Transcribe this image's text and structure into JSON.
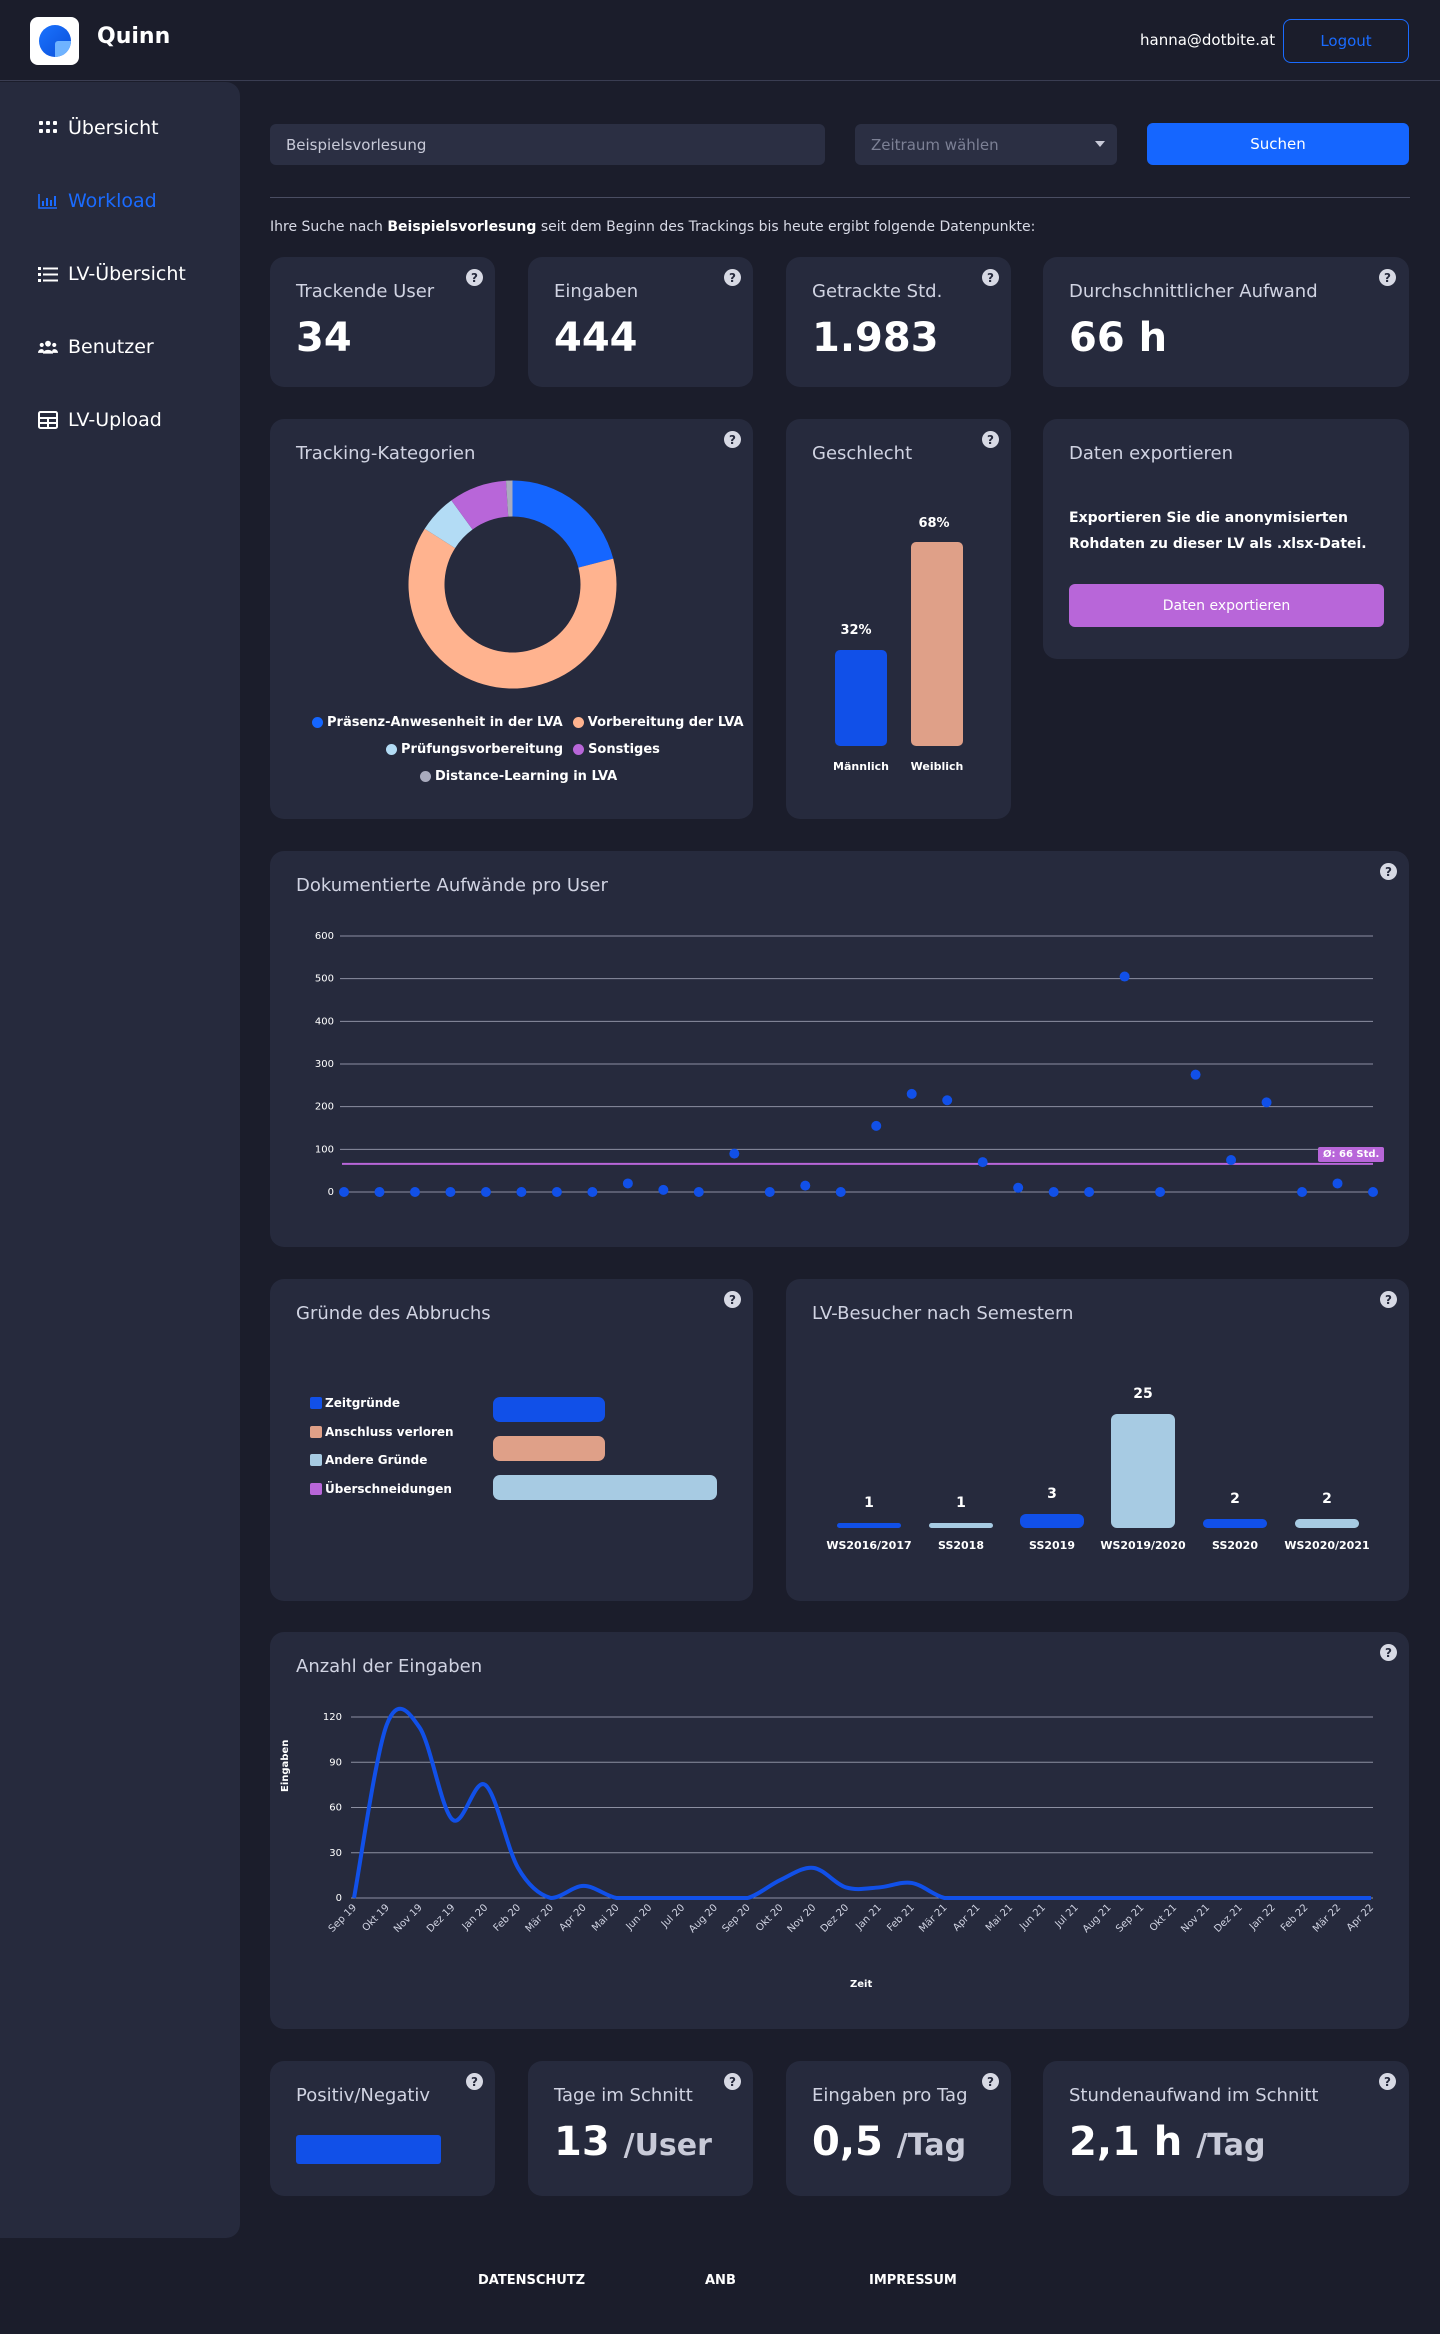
{
  "header": {
    "app_name": "Quinn",
    "user_email": "hanna@dotbite.at",
    "logout_label": "Logout"
  },
  "sidebar": {
    "items": [
      {
        "label": "Übersicht",
        "icon": "grid-icon",
        "active": false
      },
      {
        "label": "Workload",
        "icon": "bar-chart-icon",
        "active": true
      },
      {
        "label": "LV-Übersicht",
        "icon": "list-icon",
        "active": false
      },
      {
        "label": "Benutzer",
        "icon": "users-icon",
        "active": false
      },
      {
        "label": "LV-Upload",
        "icon": "table-icon",
        "active": false
      }
    ]
  },
  "search": {
    "value": "Beispielsvorlesung",
    "period_placeholder": "Zeitraum wählen",
    "button_label": "Suchen",
    "result_prefix": "Ihre Suche nach ",
    "result_term": "Beispielsvorlesung",
    "result_suffix": " seit dem Beginn des Trackings bis heute ergibt folgende Datenpunkte:"
  },
  "stats": [
    {
      "label": "Trackende User",
      "value": "34"
    },
    {
      "label": "Eingaben",
      "value": "444"
    },
    {
      "label": "Getrackte Std.",
      "value": "1.983"
    },
    {
      "label": "Durchschnittlicher Aufwand",
      "value": "66 h"
    }
  ],
  "tracking_categories": {
    "title": "Tracking-Kategorien",
    "legend": [
      {
        "label": "Präsenz-Anwesenheit in der LVA",
        "color": "#1566ff"
      },
      {
        "label": "Vorbereitung der LVA",
        "color": "#ffb38f"
      },
      {
        "label": "Prüfungsvorbereitung",
        "color": "#b3dcf5"
      },
      {
        "label": "Sonstiges",
        "color": "#b866d9"
      },
      {
        "label": "Distance-Learning in LVA",
        "color": "#a9abbe"
      }
    ]
  },
  "gender": {
    "title": "Geschlecht",
    "bars": [
      {
        "label": "Männlich",
        "value_text": "32%",
        "value": 32,
        "color": "#1150e8"
      },
      {
        "label": "Weiblich",
        "value_text": "68%",
        "value": 68,
        "color": "#dfa088"
      }
    ]
  },
  "export": {
    "title": "Daten exportieren",
    "text": "Exportieren Sie die anonymisierten Rohdaten zu dieser LV als .xlsx-Datei.",
    "button_label": "Daten exportieren"
  },
  "effort_chart": {
    "title": "Dokumentierte Aufwände pro User",
    "avg_label": "Ø: 66 Std."
  },
  "dropout": {
    "title": "Gründe des Abbruchs",
    "legend": [
      {
        "label": "Zeitgründe",
        "color": "#1150e8"
      },
      {
        "label": "Anschluss verloren",
        "color": "#dfa088"
      },
      {
        "label": "Andere Gründe",
        "color": "#a7cbe3"
      },
      {
        "label": "Überschneidungen",
        "color": "#b866d9"
      }
    ]
  },
  "semesters": {
    "title": "LV-Besucher nach Semestern"
  },
  "entries_chart": {
    "title": "Anzahl der Eingaben",
    "ylabel": "Eingaben",
    "xlabel": "Zeit"
  },
  "bottom_stats": {
    "posneg_label": "Positiv/Negativ",
    "days_label": "Tage im Schnitt",
    "days_value": "13",
    "days_unit": "/User",
    "perday_label": "Eingaben pro Tag",
    "perday_value": "0,5",
    "perday_unit": "/Tag",
    "hours_label": "Stundenaufwand im Schnitt",
    "hours_value": "2,1 h",
    "hours_unit": "/Tag"
  },
  "footer": {
    "links": [
      "DATENSCHUTZ",
      "ANB",
      "IMPRESSUM"
    ]
  },
  "chart_data": [
    {
      "type": "pie",
      "title": "Tracking-Kategorien",
      "categories": [
        "Präsenz-Anwesenheit in der LVA",
        "Vorbereitung der LVA",
        "Prüfungsvorbereitung",
        "Sonstiges",
        "Distance-Learning in LVA"
      ],
      "values": [
        21,
        63,
        6,
        9,
        1
      ],
      "colors": [
        "#1566ff",
        "#ffb38f",
        "#b3dcf5",
        "#b866d9",
        "#a9abbe"
      ]
    },
    {
      "type": "bar",
      "title": "Geschlecht",
      "categories": [
        "Männlich",
        "Weiblich"
      ],
      "values": [
        32,
        68
      ]
    },
    {
      "type": "scatter",
      "title": "Dokumentierte Aufwände pro User",
      "y": [
        0,
        0,
        0,
        0,
        0,
        0,
        0,
        0,
        20,
        5,
        0,
        90,
        0,
        15,
        0,
        155,
        230,
        215,
        70,
        10,
        0,
        0,
        505,
        0,
        275,
        75,
        210,
        0,
        20,
        0
      ],
      "yticks": [
        0,
        100,
        200,
        300,
        400,
        500,
        600
      ],
      "ylim": [
        0,
        600
      ],
      "average": 66
    },
    {
      "type": "bar",
      "title": "Gründe des Abbruchs",
      "categories": [
        "Zeitgründe",
        "Anschluss verloren",
        "Andere Gründe",
        "Überschneidungen"
      ],
      "values": [
        1,
        1,
        2,
        0
      ],
      "orientation": "horizontal",
      "colors": [
        "#1150e8",
        "#dfa088",
        "#a7cbe3",
        "#b866d9"
      ]
    },
    {
      "type": "bar",
      "title": "LV-Besucher nach Semestern",
      "categories": [
        "WS2016/2017",
        "SS2018",
        "SS2019",
        "WS2019/2020",
        "SS2020",
        "WS2020/2021"
      ],
      "values": [
        1,
        1,
        3,
        25,
        2,
        2
      ],
      "colors": [
        "#1150e8",
        "#a7cbe3",
        "#1150e8",
        "#a7cbe3",
        "#1150e8",
        "#a7cbe3"
      ]
    },
    {
      "type": "line",
      "title": "Anzahl der Eingaben",
      "xlabel": "Zeit",
      "ylabel": "Eingaben",
      "x": [
        "Sep 19",
        "Okt 19",
        "Nov 19",
        "Dez 19",
        "Jan 20",
        "Feb 20",
        "Mär 20",
        "Apr 20",
        "Mai 20",
        "Jun 20",
        "Jul 20",
        "Aug 20",
        "Sep 20",
        "Okt 20",
        "Nov 20",
        "Dez 20",
        "Jan 21",
        "Feb 21",
        "Mär 21",
        "Apr 21",
        "Mai 21",
        "Jun 21",
        "Jul 21",
        "Aug 21",
        "Sep 21",
        "Okt 21",
        "Nov 21",
        "Dez 21",
        "Jan 22",
        "Feb 22",
        "Mär 22",
        "Apr 22"
      ],
      "y": [
        0,
        115,
        113,
        52,
        75,
        20,
        0,
        8,
        0,
        0,
        0,
        0,
        0,
        12,
        20,
        7,
        7,
        10,
        0,
        0,
        0,
        0,
        0,
        0,
        0,
        0,
        0,
        0,
        0,
        0,
        0,
        0
      ],
      "yticks": [
        0,
        30,
        60,
        90,
        120
      ],
      "ylim": [
        0,
        120
      ]
    },
    {
      "type": "bar",
      "title": "Positiv/Negativ",
      "categories": [
        "Positiv"
      ],
      "values": [
        1
      ]
    }
  ]
}
